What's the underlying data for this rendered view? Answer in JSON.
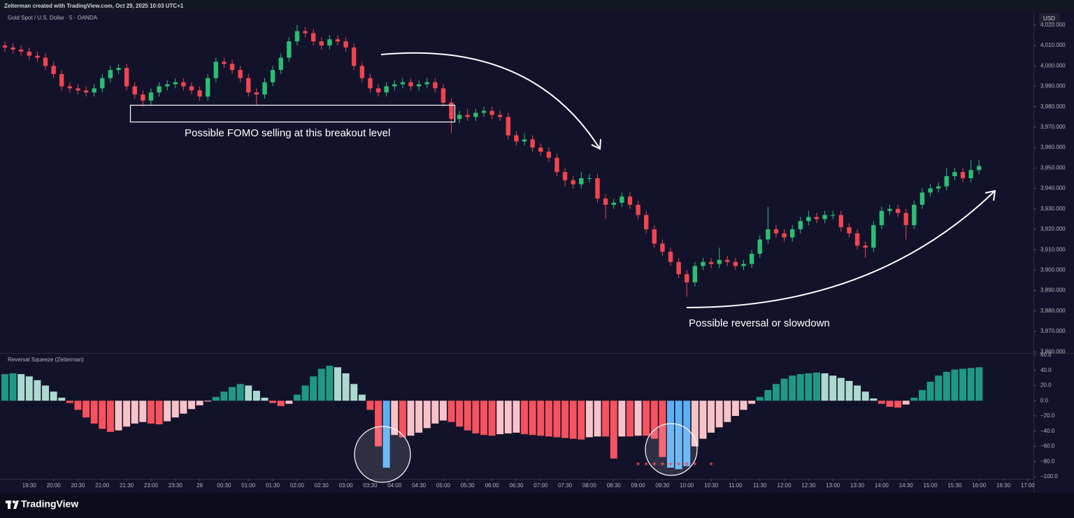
{
  "header": {
    "credit": "Zeiterman created with TradingView.com, Oct 29, 2025 10:03 UTC+1",
    "currency": "USD"
  },
  "footer": {
    "logo": "TradingView"
  },
  "chart_data": [
    {
      "type": "candlestick",
      "title": "Gold Spot / U.S. Dollar · 5 · OANDA",
      "annotations": [
        "Possible FOMO selling at this breakout level",
        "Possible reversal or slowdown"
      ],
      "up_color": "#2bbf73",
      "down_color": "#f0454f",
      "xlim": [
        -0.6,
        126.7
      ],
      "ylim": [
        3859.4,
        4026.1
      ],
      "yticks": [
        {
          "value": 3860,
          "label": "3,860.000"
        },
        {
          "value": 3870,
          "label": "3,870.000"
        },
        {
          "value": 3880,
          "label": "3,880.000"
        },
        {
          "value": 3890,
          "label": "3,890.000"
        },
        {
          "value": 3900,
          "label": "3,900.000"
        },
        {
          "value": 3910,
          "label": "3,910.000"
        },
        {
          "value": 3920,
          "label": "3,920.000"
        },
        {
          "value": 3930,
          "label": "3,930.000"
        },
        {
          "value": 3940,
          "label": "3,940.000"
        },
        {
          "value": 3950,
          "label": "3,950.000"
        },
        {
          "value": 3960,
          "label": "3,960.000"
        },
        {
          "value": 3970,
          "label": "3,970.000"
        },
        {
          "value": 3980,
          "label": "3,980.000"
        },
        {
          "value": 3990,
          "label": "3,990.000"
        },
        {
          "value": 4000,
          "label": "4,000.000"
        },
        {
          "value": 4010,
          "label": "4,010.000"
        },
        {
          "value": 4020,
          "label": "4,020.000"
        }
      ],
      "x": [
        0,
        1,
        2,
        3,
        4,
        5,
        6,
        7,
        8,
        9,
        10,
        11,
        12,
        13,
        14,
        15,
        16,
        17,
        18,
        19,
        20,
        21,
        22,
        23,
        24,
        25,
        26,
        27,
        28,
        29,
        30,
        31,
        32,
        33,
        34,
        35,
        36,
        37,
        38,
        39,
        40,
        41,
        42,
        43,
        44,
        45,
        46,
        47,
        48,
        49,
        50,
        51,
        52,
        53,
        54,
        55,
        56,
        57,
        58,
        59,
        60,
        61,
        62,
        63,
        64,
        65,
        66,
        67,
        68,
        69,
        70,
        71,
        72,
        73,
        74,
        75,
        76,
        77,
        78,
        79,
        80,
        81,
        82,
        83,
        84,
        85,
        86,
        87,
        88,
        89,
        90,
        91,
        92,
        93,
        94,
        95,
        96,
        97,
        98,
        99,
        100,
        101,
        102,
        103,
        104,
        105,
        106,
        107,
        108,
        109,
        110,
        111,
        112,
        113,
        114,
        115,
        116,
        117,
        118,
        119,
        120
      ],
      "open": [
        4010,
        4009,
        4008,
        4007,
        4005,
        4004,
        4000,
        3996,
        3990,
        3989,
        3988,
        3987,
        3989,
        3994,
        3998,
        3999,
        3990,
        3986,
        3983,
        3987,
        3990,
        3991,
        3992,
        3990,
        3988,
        3985,
        3994,
        4002,
        4001,
        3998,
        3994,
        3987,
        3986,
        3992,
        3998,
        4004,
        4012,
        4017,
        4016,
        4012,
        4010,
        4013,
        4012,
        4009,
        4000,
        3994,
        3989,
        3987,
        3990,
        3991,
        3992,
        3990,
        3991,
        3992,
        3989,
        3982,
        3974,
        3976,
        3975,
        3977,
        3978,
        3976,
        3975,
        3966,
        3963,
        3964,
        3960,
        3958,
        3955,
        3948,
        3944,
        3942,
        3945,
        3945,
        3935,
        3932,
        3933,
        3936,
        3932,
        3927,
        3920,
        3913,
        3909,
        3904,
        3898,
        3894,
        3902,
        3904,
        3903,
        3905,
        3904,
        3902,
        3903,
        3908,
        3915,
        3920,
        3918,
        3916,
        3920,
        3924,
        3926,
        3925,
        3927,
        3927,
        3921,
        3918,
        3912,
        3911,
        3922,
        3929,
        3930,
        3928,
        3922,
        3932,
        3938,
        3940,
        3941,
        3946,
        3948,
        3945,
        3949
      ],
      "high": [
        4012,
        4011,
        4010,
        4009,
        4007,
        4006,
        4002,
        3998,
        3992,
        3991,
        3990,
        3991,
        3996,
        4000,
        4001,
        4001,
        3992,
        3988,
        3989,
        3992,
        3993,
        3994,
        3994,
        3992,
        3990,
        3996,
        4004,
        4004,
        4003,
        4000,
        3996,
        3989,
        3994,
        4000,
        4006,
        4014,
        4020,
        4019,
        4018,
        4014,
        4015,
        4015,
        4014,
        4011,
        4002,
        3996,
        3991,
        3992,
        3993,
        3994,
        3994,
        3993,
        3994,
        3994,
        3991,
        3984,
        3978,
        3979,
        3979,
        3980,
        3980,
        3978,
        3977,
        3968,
        3967,
        3966,
        3962,
        3960,
        3957,
        3950,
        3946,
        3948,
        3947,
        3947,
        3937,
        3935,
        3938,
        3938,
        3934,
        3929,
        3922,
        3915,
        3911,
        3906,
        3900,
        3904,
        3906,
        3906,
        3911,
        3907,
        3906,
        3905,
        3910,
        3917,
        3931,
        3922,
        3920,
        3922,
        3926,
        3929,
        3928,
        3929,
        3929,
        3929,
        3923,
        3920,
        3914,
        3924,
        3931,
        3932,
        3932,
        3930,
        3934,
        3940,
        3942,
        3943,
        3950,
        3950,
        3950,
        3954,
        3954
      ],
      "low": [
        4007,
        4006,
        4005,
        4003,
        4002,
        3998,
        3994,
        3988,
        3987,
        3986,
        3985,
        3985,
        3987,
        3992,
        3996,
        3988,
        3984,
        3980,
        3981,
        3985,
        3988,
        3989,
        3988,
        3986,
        3983,
        3983,
        3992,
        3999,
        3996,
        3992,
        3985,
        3981,
        3984,
        3990,
        3996,
        4002,
        4010,
        4014,
        4010,
        4008,
        4008,
        4010,
        4007,
        3998,
        3992,
        3987,
        3985,
        3985,
        3988,
        3989,
        3988,
        3988,
        3989,
        3987,
        3980,
        3967,
        3972,
        3973,
        3973,
        3975,
        3974,
        3973,
        3964,
        3961,
        3961,
        3958,
        3956,
        3953,
        3946,
        3941,
        3940,
        3940,
        3943,
        3933,
        3925,
        3930,
        3931,
        3930,
        3925,
        3918,
        3911,
        3907,
        3902,
        3896,
        3887,
        3892,
        3900,
        3901,
        3901,
        3902,
        3900,
        3900,
        3901,
        3906,
        3913,
        3916,
        3914,
        3914,
        3918,
        3922,
        3923,
        3923,
        3925,
        3919,
        3916,
        3910,
        3906,
        3909,
        3920,
        3927,
        3926,
        3915,
        3920,
        3930,
        3936,
        3938,
        3939,
        3944,
        3943,
        3943,
        3947
      ],
      "close": [
        4009,
        4008,
        4007,
        4005,
        4004,
        4000,
        3996,
        3990,
        3989,
        3988,
        3987,
        3989,
        3994,
        3998,
        3999,
        3990,
        3986,
        3983,
        3987,
        3990,
        3991,
        3992,
        3990,
        3988,
        3985,
        3994,
        4002,
        4001,
        3998,
        3994,
        3987,
        3986,
        3992,
        3998,
        4004,
        4012,
        4017,
        4016,
        4012,
        4010,
        4013,
        4012,
        4009,
        4000,
        3994,
        3989,
        3987,
        3990,
        3991,
        3992,
        3990,
        3991,
        3992,
        3989,
        3982,
        3974,
        3976,
        3975,
        3977,
        3978,
        3976,
        3975,
        3966,
        3963,
        3964,
        3960,
        3958,
        3955,
        3948,
        3944,
        3942,
        3945,
        3945,
        3935,
        3932,
        3933,
        3936,
        3932,
        3927,
        3920,
        3913,
        3909,
        3904,
        3898,
        3894,
        3902,
        3904,
        3903,
        3905,
        3904,
        3902,
        3903,
        3908,
        3915,
        3920,
        3918,
        3916,
        3920,
        3924,
        3926,
        3925,
        3927,
        3927,
        3921,
        3918,
        3912,
        3911,
        3922,
        3929,
        3930,
        3928,
        3922,
        3932,
        3938,
        3940,
        3941,
        3946,
        3948,
        3945,
        3949,
        3951
      ]
    },
    {
      "type": "bar",
      "title": "Reversal Squeeze (Zeiterman)",
      "colors": {
        "positive_rising": "#1f9985",
        "positive_falling": "#acd9d0",
        "negative_falling": "#f7525f",
        "negative_rising": "#f8c3c8"
      },
      "squeeze_color": "#5eb0f5",
      "squeeze_bars": [
        47,
        82,
        83,
        84
      ],
      "xlim": [
        -0.6,
        126.7
      ],
      "ylim": [
        -102.7,
        62.7
      ],
      "yticks": [
        {
          "value": 60,
          "label": "60.0"
        },
        {
          "value": 40,
          "label": "40.0"
        },
        {
          "value": 20,
          "label": "20.0"
        },
        {
          "value": 0,
          "label": "0.0"
        },
        {
          "value": -20,
          "label": "−20.0"
        },
        {
          "value": -40,
          "label": "−40.0"
        },
        {
          "value": -60,
          "label": "−60.0"
        },
        {
          "value": -80,
          "label": "−80.0"
        },
        {
          "value": -100,
          "label": "−100.0"
        }
      ],
      "xticks": [
        {
          "value": 3,
          "label": "19:30"
        },
        {
          "value": 6,
          "label": "20:00"
        },
        {
          "value": 9,
          "label": "20:30"
        },
        {
          "value": 12,
          "label": "21:00"
        },
        {
          "value": 15,
          "label": "21:30"
        },
        {
          "value": 18,
          "label": "23:00"
        },
        {
          "value": 21,
          "label": "23:30"
        },
        {
          "value": 24,
          "label": "28"
        },
        {
          "value": 27,
          "label": "00:30"
        },
        {
          "value": 30,
          "label": "01:00"
        },
        {
          "value": 33,
          "label": "01:30"
        },
        {
          "value": 36,
          "label": "02:00"
        },
        {
          "value": 39,
          "label": "02:30"
        },
        {
          "value": 42,
          "label": "03:00"
        },
        {
          "value": 45,
          "label": "03:30"
        },
        {
          "value": 48,
          "label": "04:00"
        },
        {
          "value": 51,
          "label": "04:30"
        },
        {
          "value": 54,
          "label": "05:00"
        },
        {
          "value": 57,
          "label": "05:30"
        },
        {
          "value": 60,
          "label": "06:00"
        },
        {
          "value": 63,
          "label": "06:30"
        },
        {
          "value": 66,
          "label": "07:00"
        },
        {
          "value": 69,
          "label": "07:30"
        },
        {
          "value": 72,
          "label": "08:00"
        },
        {
          "value": 75,
          "label": "08:30"
        },
        {
          "value": 78,
          "label": "09:00"
        },
        {
          "value": 81,
          "label": "09:30"
        },
        {
          "value": 84,
          "label": "10:00"
        },
        {
          "value": 87,
          "label": "10:30"
        },
        {
          "value": 90,
          "label": "11:00"
        },
        {
          "value": 93,
          "label": "11:30"
        },
        {
          "value": 96,
          "label": "12:00"
        },
        {
          "value": 99,
          "label": "12:30"
        },
        {
          "value": 102,
          "label": "13:00"
        },
        {
          "value": 105,
          "label": "13:30"
        },
        {
          "value": 108,
          "label": "14:00"
        },
        {
          "value": 111,
          "label": "14:30"
        },
        {
          "value": 114,
          "label": "15:00"
        },
        {
          "value": 117,
          "label": "15:30"
        },
        {
          "value": 120,
          "label": "16:00"
        },
        {
          "value": 123,
          "label": "16:30"
        },
        {
          "value": 126,
          "label": "17:00"
        }
      ],
      "x": [
        0,
        1,
        2,
        3,
        4,
        5,
        6,
        7,
        8,
        9,
        10,
        11,
        12,
        13,
        14,
        15,
        16,
        17,
        18,
        19,
        20,
        21,
        22,
        23,
        24,
        25,
        26,
        27,
        28,
        29,
        30,
        31,
        32,
        33,
        34,
        35,
        36,
        37,
        38,
        39,
        40,
        41,
        42,
        43,
        44,
        45,
        46,
        47,
        48,
        49,
        50,
        51,
        52,
        53,
        54,
        55,
        56,
        57,
        58,
        59,
        60,
        61,
        62,
        63,
        64,
        65,
        66,
        67,
        68,
        69,
        70,
        71,
        72,
        73,
        74,
        75,
        76,
        77,
        78,
        79,
        80,
        81,
        82,
        83,
        84,
        85,
        86,
        87,
        88,
        89,
        90,
        91,
        92,
        93,
        94,
        95,
        96,
        97,
        98,
        99,
        100,
        101,
        102,
        103,
        104,
        105,
        106,
        107,
        108,
        109,
        110,
        111,
        112,
        113,
        114,
        115,
        116,
        117,
        118,
        119,
        120
      ],
      "values": [
        35,
        36,
        35,
        32,
        27,
        20,
        12,
        4,
        -3,
        -12,
        -22,
        -30,
        -37,
        -41,
        -39,
        -34,
        -30,
        -28,
        -30,
        -31,
        -27,
        -22,
        -17,
        -11,
        -6,
        -1,
        5,
        12,
        18,
        22,
        20,
        13,
        4,
        -3,
        -7,
        -4,
        8,
        20,
        32,
        42,
        46,
        44,
        36,
        22,
        8,
        -12,
        -60,
        -88,
        -45,
        -48,
        -46,
        -42,
        -36,
        -30,
        -26,
        -28,
        -34,
        -39,
        -43,
        -45,
        -46,
        -44,
        -43,
        -42,
        -44,
        -45,
        -46,
        -47,
        -48,
        -49,
        -50,
        -51,
        -48,
        -47,
        -47,
        -76,
        -47,
        -47,
        -46,
        -46,
        -50,
        -74,
        -88,
        -90,
        -86,
        -60,
        -50,
        -42,
        -35,
        -28,
        -20,
        -12,
        -4,
        5,
        14,
        22,
        29,
        33,
        35,
        36,
        37,
        36,
        33,
        30,
        26,
        20,
        12,
        3,
        -4,
        -8,
        -9,
        -5,
        4,
        14,
        25,
        33,
        38,
        41,
        42,
        43,
        44
      ],
      "markers": {
        "color": "#f23645",
        "x": [
          78,
          79,
          80,
          81,
          82,
          83,
          84,
          85,
          87
        ],
        "values": [
          -83,
          -83,
          -83,
          -83,
          -83,
          -83,
          -83,
          -83,
          -83
        ]
      }
    }
  ]
}
